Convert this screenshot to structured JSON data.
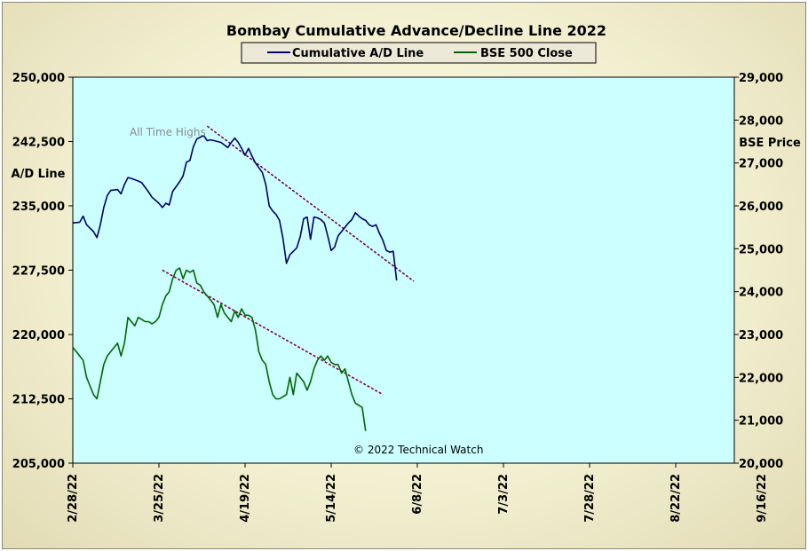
{
  "chart_data": {
    "type": "line",
    "title": "Bombay Cumulative Advance/Decline Line 2022",
    "ylabel_left": "A/D Line",
    "ylabel_right": "BSE Price",
    "ylim_left": [
      205000,
      250000
    ],
    "ylim_right": [
      20000,
      29000
    ],
    "y_ticks_left": [
      "205,000",
      "212,500",
      "220,000",
      "227,500",
      "235,000",
      "242,500",
      "250,000"
    ],
    "y_ticks_right": [
      "20,000",
      "21,000",
      "22,000",
      "23,000",
      "24,000",
      "25,000",
      "26,000",
      "27,000",
      "28,000",
      "29,000"
    ],
    "x_ticks": [
      "2/28/22",
      "3/25/22",
      "4/19/22",
      "5/14/22",
      "6/8/22",
      "7/3/22",
      "7/28/22",
      "8/22/22",
      "9/16/22"
    ],
    "legend": [
      "Cumulative A/D Line",
      "BSE 500 Close"
    ],
    "legend_position": "top-center",
    "background": "#ccffff",
    "series": [
      {
        "name": "Cumulative A/D Line",
        "color": "#000066",
        "axis": "left",
        "points": [
          [
            0,
            233000
          ],
          [
            2,
            233100
          ],
          [
            3,
            233800
          ],
          [
            4,
            232800
          ],
          [
            6,
            232000
          ],
          [
            7,
            231300
          ],
          [
            8,
            232800
          ],
          [
            9,
            234800
          ],
          [
            10,
            236200
          ],
          [
            11,
            236800
          ],
          [
            13,
            236900
          ],
          [
            14,
            236400
          ],
          [
            15,
            237500
          ],
          [
            16,
            238300
          ],
          [
            17,
            238200
          ],
          [
            19,
            237900
          ],
          [
            20,
            237700
          ],
          [
            22,
            236600
          ],
          [
            23,
            236000
          ],
          [
            25,
            235300
          ],
          [
            26,
            234800
          ],
          [
            27,
            235300
          ],
          [
            28,
            235100
          ],
          [
            29,
            236700
          ],
          [
            31,
            237800
          ],
          [
            32,
            238500
          ],
          [
            33,
            240100
          ],
          [
            34,
            240300
          ],
          [
            35,
            241900
          ],
          [
            36,
            242800
          ],
          [
            38,
            243200
          ],
          [
            39,
            242600
          ],
          [
            40,
            242700
          ],
          [
            41,
            242600
          ],
          [
            43,
            242400
          ],
          [
            44,
            242100
          ],
          [
            45,
            241800
          ],
          [
            46,
            242400
          ],
          [
            47,
            242900
          ],
          [
            48,
            242400
          ],
          [
            49,
            241700
          ],
          [
            50,
            240900
          ],
          [
            51,
            241700
          ],
          [
            52,
            240800
          ],
          [
            53,
            240000
          ],
          [
            55,
            238900
          ],
          [
            56,
            237500
          ],
          [
            57,
            235000
          ],
          [
            58,
            234400
          ],
          [
            59,
            234000
          ],
          [
            60,
            233300
          ],
          [
            61,
            231200
          ],
          [
            62,
            228300
          ],
          [
            63,
            229300
          ],
          [
            65,
            230100
          ],
          [
            66,
            231400
          ],
          [
            67,
            233500
          ],
          [
            68,
            233700
          ],
          [
            69,
            231100
          ],
          [
            70,
            233700
          ],
          [
            71,
            233600
          ],
          [
            72,
            233400
          ],
          [
            73,
            233000
          ],
          [
            74,
            231500
          ],
          [
            75,
            229800
          ],
          [
            76,
            230200
          ],
          [
            77,
            231500
          ],
          [
            79,
            232500
          ],
          [
            80,
            233000
          ],
          [
            81,
            233400
          ],
          [
            82,
            234200
          ],
          [
            83,
            233800
          ],
          [
            84,
            233500
          ],
          [
            85,
            233300
          ],
          [
            86,
            232800
          ],
          [
            87,
            232600
          ],
          [
            88,
            232800
          ],
          [
            89,
            231800
          ],
          [
            90,
            231000
          ],
          [
            91,
            229800
          ],
          [
            92,
            229600
          ],
          [
            93,
            229700
          ],
          [
            94,
            226300
          ]
        ]
      },
      {
        "name": "BSE 500 Close",
        "color": "#006600",
        "axis": "right",
        "points": [
          [
            0,
            22700
          ],
          [
            1,
            22600
          ],
          [
            2,
            22500
          ],
          [
            3,
            22400
          ],
          [
            4,
            22000
          ],
          [
            5,
            21800
          ],
          [
            6,
            21600
          ],
          [
            7,
            21500
          ],
          [
            8,
            21900
          ],
          [
            9,
            22300
          ],
          [
            10,
            22500
          ],
          [
            11,
            22600
          ],
          [
            12,
            22700
          ],
          [
            13,
            22800
          ],
          [
            14,
            22500
          ],
          [
            15,
            22800
          ],
          [
            16,
            23400
          ],
          [
            17,
            23300
          ],
          [
            18,
            23200
          ],
          [
            19,
            23400
          ],
          [
            20,
            23350
          ],
          [
            21,
            23300
          ],
          [
            22,
            23300
          ],
          [
            23,
            23250
          ],
          [
            24,
            23300
          ],
          [
            25,
            23400
          ],
          [
            26,
            23700
          ],
          [
            27,
            23900
          ],
          [
            28,
            24000
          ],
          [
            29,
            24300
          ],
          [
            30,
            24500
          ],
          [
            31,
            24550
          ],
          [
            32,
            24300
          ],
          [
            33,
            24500
          ],
          [
            34,
            24450
          ],
          [
            35,
            24500
          ],
          [
            36,
            24200
          ],
          [
            37,
            24150
          ],
          [
            38,
            24000
          ],
          [
            39,
            23900
          ],
          [
            40,
            23800
          ],
          [
            41,
            23700
          ],
          [
            42,
            23400
          ],
          [
            43,
            23700
          ],
          [
            44,
            23500
          ],
          [
            45,
            23400
          ],
          [
            46,
            23300
          ],
          [
            47,
            23550
          ],
          [
            48,
            23400
          ],
          [
            49,
            23600
          ],
          [
            50,
            23450
          ],
          [
            51,
            23450
          ],
          [
            52,
            23400
          ],
          [
            53,
            23100
          ],
          [
            54,
            22600
          ],
          [
            55,
            22400
          ],
          [
            56,
            22300
          ],
          [
            57,
            21900
          ],
          [
            58,
            21600
          ],
          [
            59,
            21500
          ],
          [
            60,
            21500
          ],
          [
            61,
            21550
          ],
          [
            62,
            21600
          ],
          [
            63,
            22000
          ],
          [
            64,
            21600
          ],
          [
            65,
            22100
          ],
          [
            66,
            22000
          ],
          [
            67,
            21900
          ],
          [
            68,
            21700
          ],
          [
            69,
            21900
          ],
          [
            70,
            22200
          ],
          [
            71,
            22400
          ],
          [
            72,
            22500
          ],
          [
            73,
            22400
          ],
          [
            74,
            22500
          ],
          [
            75,
            22350
          ],
          [
            76,
            22300
          ],
          [
            77,
            22300
          ],
          [
            78,
            22100
          ],
          [
            79,
            22200
          ],
          [
            80,
            21900
          ],
          [
            81,
            21600
          ],
          [
            82,
            21400
          ],
          [
            83,
            21350
          ],
          [
            84,
            21300
          ],
          [
            85,
            20750
          ]
        ]
      }
    ],
    "trendlines": [
      {
        "axis": "left",
        "from": [
          39,
          244300
        ],
        "to": [
          99,
          226200
        ],
        "color": "#800040"
      },
      {
        "axis": "right",
        "from": [
          26,
          24500
        ],
        "to": [
          90,
          21600
        ],
        "color": "#800040"
      }
    ],
    "annotations": [
      "All Time Highs",
      "© 2022 Technical Watch"
    ]
  }
}
